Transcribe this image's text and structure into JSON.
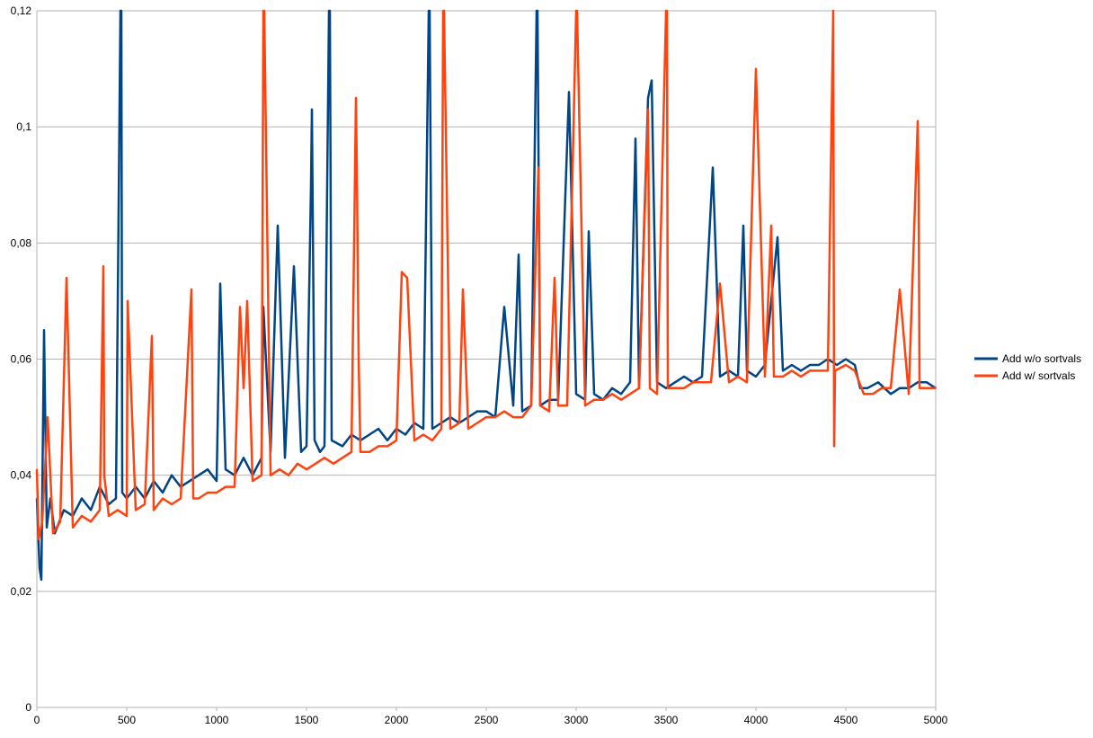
{
  "chart_data": {
    "type": "line",
    "title": "",
    "xlabel": "",
    "ylabel": "",
    "xlim": [
      0,
      5000
    ],
    "ylim": [
      0,
      0.12
    ],
    "x_ticks": [
      "0",
      "500",
      "1000",
      "1500",
      "2000",
      "2500",
      "3000",
      "3500",
      "4000",
      "4500",
      "5000"
    ],
    "y_ticks": [
      "0",
      "0,02",
      "0,04",
      "0,06",
      "0,08",
      "0,1",
      "0,12"
    ],
    "grid": "horizontal",
    "legend_position": "right",
    "series": [
      {
        "name": "Add w/o sortvals",
        "color": "#004586",
        "x": [
          0,
          15,
          25,
          40,
          55,
          75,
          100,
          150,
          200,
          250,
          300,
          350,
          400,
          440,
          465,
          470,
          475,
          500,
          550,
          600,
          650,
          700,
          750,
          800,
          850,
          900,
          950,
          1000,
          1020,
          1050,
          1100,
          1150,
          1200,
          1250,
          1260,
          1300,
          1340,
          1380,
          1430,
          1470,
          1500,
          1525,
          1530,
          1545,
          1575,
          1600,
          1625,
          1630,
          1640,
          1700,
          1750,
          1800,
          1850,
          1900,
          1950,
          2000,
          2050,
          2100,
          2150,
          2180,
          2185,
          2200,
          2250,
          2300,
          2350,
          2400,
          2450,
          2500,
          2550,
          2600,
          2650,
          2680,
          2700,
          2750,
          2780,
          2785,
          2800,
          2850,
          2900,
          2960,
          3000,
          3050,
          3070,
          3100,
          3150,
          3200,
          3250,
          3300,
          3330,
          3350,
          3400,
          3420,
          3450,
          3500,
          3550,
          3600,
          3650,
          3700,
          3760,
          3800,
          3850,
          3900,
          3930,
          3950,
          4000,
          4050,
          4120,
          4150,
          4200,
          4250,
          4300,
          4350,
          4400,
          4450,
          4500,
          4550,
          4580,
          4620,
          4680,
          4750,
          4800,
          4850,
          4900,
          4950,
          5000
        ],
        "y": [
          0.036,
          0.024,
          0.022,
          0.065,
          0.031,
          0.036,
          0.03,
          0.034,
          0.033,
          0.036,
          0.034,
          0.038,
          0.035,
          0.036,
          0.12,
          0.12,
          0.037,
          0.036,
          0.038,
          0.036,
          0.039,
          0.037,
          0.04,
          0.038,
          0.039,
          0.04,
          0.041,
          0.039,
          0.073,
          0.041,
          0.04,
          0.043,
          0.04,
          0.043,
          0.069,
          0.044,
          0.083,
          0.043,
          0.076,
          0.044,
          0.045,
          0.09,
          0.103,
          0.046,
          0.044,
          0.045,
          0.12,
          0.12,
          0.046,
          0.045,
          0.047,
          0.046,
          0.047,
          0.048,
          0.046,
          0.048,
          0.047,
          0.049,
          0.048,
          0.12,
          0.12,
          0.048,
          0.049,
          0.05,
          0.049,
          0.05,
          0.051,
          0.051,
          0.05,
          0.069,
          0.052,
          0.078,
          0.051,
          0.052,
          0.12,
          0.12,
          0.052,
          0.053,
          0.053,
          0.106,
          0.054,
          0.053,
          0.082,
          0.054,
          0.053,
          0.055,
          0.054,
          0.056,
          0.098,
          0.055,
          0.105,
          0.108,
          0.056,
          0.055,
          0.056,
          0.057,
          0.056,
          0.057,
          0.093,
          0.057,
          0.058,
          0.057,
          0.083,
          0.058,
          0.057,
          0.059,
          0.081,
          0.058,
          0.059,
          0.058,
          0.059,
          0.059,
          0.06,
          0.059,
          0.06,
          0.059,
          0.055,
          0.055,
          0.056,
          0.054,
          0.055,
          0.055,
          0.056,
          0.056,
          0.055
        ]
      },
      {
        "name": "Add w/ sortvals",
        "color": "#ff420e",
        "x": [
          0,
          10,
          30,
          60,
          90,
          130,
          165,
          200,
          250,
          300,
          350,
          370,
          375,
          400,
          450,
          500,
          505,
          550,
          600,
          640,
          650,
          700,
          750,
          800,
          860,
          870,
          900,
          950,
          1000,
          1050,
          1100,
          1130,
          1150,
          1170,
          1200,
          1250,
          1260,
          1265,
          1300,
          1350,
          1400,
          1450,
          1500,
          1550,
          1600,
          1650,
          1700,
          1750,
          1775,
          1780,
          1790,
          1800,
          1850,
          1900,
          1950,
          2000,
          2030,
          2060,
          2080,
          2100,
          2150,
          2200,
          2250,
          2260,
          2265,
          2300,
          2350,
          2370,
          2400,
          2450,
          2500,
          2550,
          2600,
          2650,
          2700,
          2750,
          2790,
          2800,
          2850,
          2880,
          2900,
          2950,
          3000,
          3005,
          3050,
          3100,
          3150,
          3200,
          3250,
          3300,
          3350,
          3400,
          3410,
          3450,
          3500,
          3505,
          3510,
          3550,
          3600,
          3650,
          3700,
          3750,
          3800,
          3850,
          3900,
          3950,
          4000,
          4050,
          4085,
          4100,
          4150,
          4200,
          4250,
          4300,
          4350,
          4400,
          4430,
          4435,
          4440,
          4500,
          4550,
          4600,
          4650,
          4700,
          4750,
          4800,
          4850,
          4900,
          4905,
          4910,
          4950,
          5000
        ],
        "y": [
          0.041,
          0.029,
          0.032,
          0.05,
          0.03,
          0.032,
          0.074,
          0.031,
          0.033,
          0.032,
          0.034,
          0.076,
          0.04,
          0.033,
          0.034,
          0.033,
          0.07,
          0.034,
          0.035,
          0.064,
          0.034,
          0.036,
          0.035,
          0.036,
          0.072,
          0.036,
          0.036,
          0.037,
          0.037,
          0.038,
          0.038,
          0.069,
          0.055,
          0.07,
          0.039,
          0.04,
          0.12,
          0.12,
          0.04,
          0.041,
          0.04,
          0.042,
          0.041,
          0.042,
          0.043,
          0.042,
          0.043,
          0.044,
          0.105,
          0.093,
          0.06,
          0.044,
          0.044,
          0.045,
          0.045,
          0.046,
          0.075,
          0.074,
          0.06,
          0.046,
          0.047,
          0.046,
          0.048,
          0.12,
          0.12,
          0.048,
          0.049,
          0.072,
          0.048,
          0.049,
          0.05,
          0.05,
          0.051,
          0.05,
          0.05,
          0.052,
          0.093,
          0.052,
          0.051,
          0.074,
          0.052,
          0.052,
          0.12,
          0.12,
          0.052,
          0.053,
          0.053,
          0.054,
          0.053,
          0.054,
          0.055,
          0.103,
          0.055,
          0.054,
          0.12,
          0.12,
          0.055,
          0.055,
          0.055,
          0.056,
          0.056,
          0.056,
          0.073,
          0.056,
          0.057,
          0.056,
          0.11,
          0.057,
          0.083,
          0.057,
          0.057,
          0.058,
          0.057,
          0.058,
          0.058,
          0.058,
          0.12,
          0.045,
          0.058,
          0.059,
          0.058,
          0.054,
          0.054,
          0.055,
          0.055,
          0.072,
          0.054,
          0.101,
          0.09,
          0.055,
          0.055,
          0.055
        ]
      }
    ]
  }
}
